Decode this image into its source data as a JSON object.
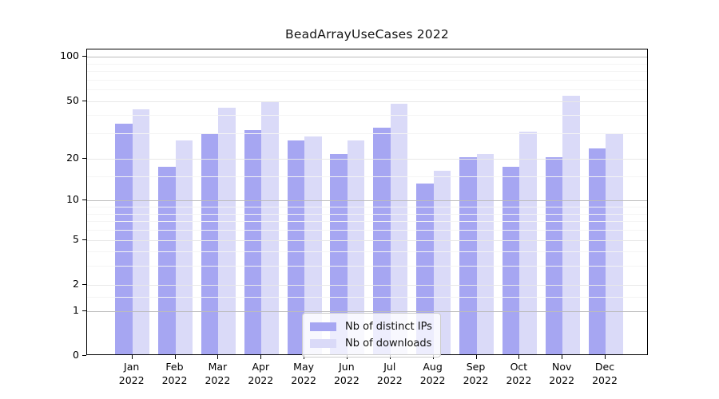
{
  "title": "BeadArrayUseCases 2022",
  "legend": {
    "items": [
      {
        "id": "distinct-ips",
        "label": "Nb of distinct IPs",
        "color": "#a6a6f2"
      },
      {
        "id": "downloads",
        "label": "Nb of downloads",
        "color": "#dadaf8"
      }
    ]
  },
  "chart_data": {
    "type": "bar",
    "title": "BeadArrayUseCases 2022",
    "categories": [
      "Jan",
      "Feb",
      "Mar",
      "Apr",
      "May",
      "Jun",
      "Jul",
      "Aug",
      "Sep",
      "Oct",
      "Nov",
      "Dec"
    ],
    "year": "2022",
    "series": [
      {
        "name": "Nb of distinct IPs",
        "color": "#a6a6f2",
        "values": [
          34,
          17,
          29,
          31,
          26,
          21,
          32,
          13,
          20,
          17,
          20,
          23
        ]
      },
      {
        "name": "Nb of downloads",
        "color": "#dadaf8",
        "values": [
          43,
          26,
          44,
          48,
          28,
          26,
          47,
          16,
          21,
          30,
          53,
          29
        ]
      }
    ],
    "xlabel": "",
    "ylabel": "",
    "yscale": "log1p",
    "ylim": [
      0,
      112
    ],
    "yticks": [
      0,
      1,
      2,
      5,
      10,
      20,
      50,
      100
    ],
    "grid": "on",
    "gridline_tiers": {
      "major": {
        "values": [
          1,
          10,
          100
        ],
        "color": "#bcbcbc"
      },
      "semi": {
        "values": [
          2,
          5,
          20,
          50
        ],
        "color": "#e8e8e8"
      },
      "minor": {
        "values": [
          1.5,
          3,
          4,
          6,
          7,
          8,
          9,
          15,
          30,
          40,
          60,
          70,
          80,
          90
        ],
        "color": "#f4f4f4"
      }
    },
    "legend_position": "lower center",
    "legend_entries": [
      "Nb of distinct IPs",
      "Nb of downloads"
    ]
  }
}
